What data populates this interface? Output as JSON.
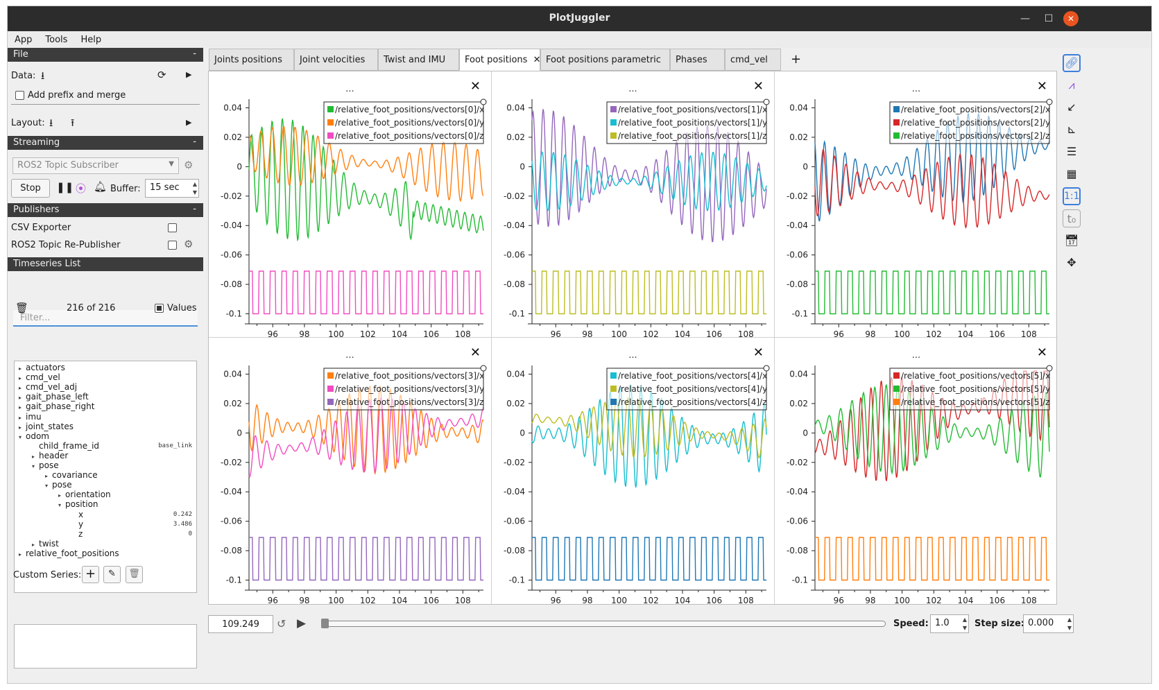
{
  "window": {
    "title": "PlotJuggler"
  },
  "menu": [
    "App",
    "Tools",
    "Help"
  ],
  "file": {
    "header": "File",
    "data_label": "Data:",
    "add_prefix": "Add prefix and merge",
    "layout_label": "Layout:"
  },
  "streaming": {
    "header": "Streaming",
    "source": "ROS2 Topic Subscriber",
    "stop": "Stop",
    "buffer_label": "Buffer:",
    "buffer_value": "15 sec"
  },
  "publishers": {
    "header": "Publishers",
    "items": [
      {
        "label": "CSV Exporter"
      },
      {
        "label": "ROS2 Topic Re-Publisher"
      }
    ]
  },
  "timeseries": {
    "header": "Timeseries List",
    "filter_placeholder": "Filter...",
    "count": "216 of 216",
    "values_label": "Values",
    "tree": [
      {
        "label": "actuators",
        "toggle": "▸",
        "value": ""
      },
      {
        "label": "cmd_vel",
        "toggle": "▸",
        "value": ""
      },
      {
        "label": "cmd_vel_adj",
        "toggle": "▸",
        "value": ""
      },
      {
        "label": "gait_phase_left",
        "toggle": "▸",
        "value": ""
      },
      {
        "label": "gait_phase_right",
        "toggle": "▸",
        "value": ""
      },
      {
        "label": "imu",
        "toggle": "▸",
        "value": ""
      },
      {
        "label": "joint_states",
        "toggle": "▸",
        "value": ""
      },
      {
        "label": "odom",
        "toggle": "▾",
        "value": ""
      },
      {
        "label": "child_frame_id",
        "toggle": "",
        "value": "base_link"
      },
      {
        "label": "header",
        "toggle": "▸",
        "value": ""
      },
      {
        "label": "pose",
        "toggle": "▾",
        "value": ""
      },
      {
        "label": "covariance",
        "toggle": "▸",
        "value": ""
      },
      {
        "label": "pose",
        "toggle": "▾",
        "value": ""
      },
      {
        "label": "orientation",
        "toggle": "▸",
        "value": ""
      },
      {
        "label": "position",
        "toggle": "▾",
        "value": ""
      },
      {
        "label": "x",
        "toggle": "",
        "value": "0.242"
      },
      {
        "label": "y",
        "toggle": "",
        "value": "3.486"
      },
      {
        "label": "z",
        "toggle": "",
        "value": "0"
      },
      {
        "label": "twist",
        "toggle": "▸",
        "value": ""
      },
      {
        "label": "relative_foot_positions",
        "toggle": "▸",
        "value": ""
      }
    ]
  },
  "custom": {
    "label": "Custom Series:"
  },
  "tabs": [
    {
      "label": "Joints positions"
    },
    {
      "label": "Joint velocities"
    },
    {
      "label": "Twist and IMU"
    },
    {
      "label": "Foot positions",
      "close": "✕"
    },
    {
      "label": "Foot positions parametric"
    },
    {
      "label": "Phases"
    },
    {
      "label": "cmd_vel"
    }
  ],
  "add_tab": "+",
  "plot_menu": "...",
  "plot_close": "✕",
  "bottom": {
    "time": "109.249",
    "speed_label": "Speed:",
    "speed_value": "1.0",
    "step_label": "Step size:",
    "step_value": "0.000"
  },
  "right_toolbar": [
    "link-icon",
    "ratio-icon",
    "arrow-icon",
    "histogram-icon",
    "list-icon",
    "grid-icon",
    "one-to-one-icon",
    "t0-icon",
    "calendar-clock-icon",
    "move-icon"
  ],
  "chart_data": [
    {
      "type": "line",
      "xlim": [
        94.5,
        109.3
      ],
      "ylim": [
        -0.104,
        0.044
      ],
      "x_ticks": [
        96,
        98,
        100,
        102,
        104,
        106,
        108
      ],
      "y_ticks": [
        0.04,
        0.02,
        0,
        -0.02,
        -0.04,
        -0.06,
        -0.08,
        -0.1
      ],
      "y_tick_labels": [
        "0.04",
        "0.02",
        "0",
        "-0.02",
        "-0.04",
        "-0.06",
        "-0.08",
        "-0.1"
      ],
      "series": [
        {
          "name": "/relative_foot_positions/vectors[0]/x",
          "color": "#22bb33",
          "kind": "osc_then_drift",
          "amp": 0.041,
          "center": -0.002,
          "end": -0.04
        },
        {
          "name": "/relative_foot_positions/vectors[0]/y",
          "color": "#ff7f0e",
          "kind": "osc",
          "amp": 0.02,
          "center": 0.01,
          "end": -0.005
        },
        {
          "name": "/relative_foot_positions/vectors[0]/z",
          "color": "#f14cc1",
          "kind": "square"
        }
      ]
    },
    {
      "type": "line",
      "xlim": [
        94.5,
        109.3
      ],
      "ylim": [
        -0.104,
        0.044
      ],
      "x_ticks": [
        96,
        98,
        100,
        102,
        104,
        106,
        108
      ],
      "y_ticks": [
        0.04,
        0.02,
        0,
        -0.02,
        -0.04,
        -0.06,
        -0.08,
        -0.1
      ],
      "y_tick_labels": [
        "0.04",
        "0.02",
        "0",
        "-0.02",
        "-0.04",
        "-0.06",
        "-0.08",
        "-0.1"
      ],
      "series": [
        {
          "name": "/relative_foot_positions/vectors[1]/x",
          "color": "#9467bd",
          "kind": "osc",
          "amp": 0.04,
          "center": 0.0,
          "end": -0.015
        },
        {
          "name": "/relative_foot_positions/vectors[1]/y",
          "color": "#17becf",
          "kind": "osc",
          "amp": 0.02,
          "center": -0.01,
          "end": -0.01
        },
        {
          "name": "/relative_foot_positions/vectors[1]/z",
          "color": "#bcbd22",
          "kind": "square"
        }
      ]
    },
    {
      "type": "line",
      "xlim": [
        94.5,
        109.3
      ],
      "ylim": [
        -0.104,
        0.044
      ],
      "x_ticks": [
        96,
        98,
        100,
        102,
        104,
        106,
        108
      ],
      "y_ticks": [
        0.04,
        0.02,
        0,
        -0.02,
        -0.04,
        -0.06,
        -0.08,
        -0.1
      ],
      "y_tick_labels": [
        "0.04",
        "0.02",
        "0",
        "-0.02",
        "-0.04",
        "-0.06",
        "-0.08",
        "-0.1"
      ],
      "series": [
        {
          "name": "/relative_foot_positions/vectors[2]/x",
          "color": "#1f77b4",
          "kind": "osc",
          "amp": 0.03,
          "center": -0.01,
          "end": 0.015
        },
        {
          "name": "/relative_foot_positions/vectors[2]/y",
          "color": "#d62728",
          "kind": "osc",
          "amp": 0.025,
          "center": -0.01,
          "end": -0.02
        },
        {
          "name": "/relative_foot_positions/vectors[2]/z",
          "color": "#22bb33",
          "kind": "square"
        }
      ]
    },
    {
      "type": "line",
      "xlim": [
        94.5,
        109.3
      ],
      "ylim": [
        -0.104,
        0.044
      ],
      "x_ticks": [
        96,
        98,
        100,
        102,
        104,
        106,
        108
      ],
      "y_ticks": [
        0.04,
        0.02,
        0,
        -0.02,
        -0.04,
        -0.06,
        -0.08,
        -0.1
      ],
      "y_tick_labels": [
        "0.04",
        "0.02",
        "0",
        "-0.02",
        "-0.04",
        "-0.06",
        "-0.08",
        "-0.1"
      ],
      "series": [
        {
          "name": "/relative_foot_positions/vectors[3]/x",
          "color": "#ff7f0e",
          "kind": "osc",
          "amp": 0.03,
          "center": 0.005,
          "end": 0.0
        },
        {
          "name": "/relative_foot_positions/vectors[3]/y",
          "color": "#f14cc1",
          "kind": "osc",
          "amp": 0.025,
          "center": -0.015,
          "end": 0.01
        },
        {
          "name": "/relative_foot_positions/vectors[3]/z",
          "color": "#9467bd",
          "kind": "square"
        }
      ]
    },
    {
      "type": "line",
      "xlim": [
        94.5,
        109.3
      ],
      "ylim": [
        -0.104,
        0.044
      ],
      "x_ticks": [
        96,
        98,
        100,
        102,
        104,
        106,
        108
      ],
      "y_ticks": [
        0.04,
        0.02,
        0,
        -0.02,
        -0.04,
        -0.06,
        -0.08,
        -0.1
      ],
      "y_tick_labels": [
        "0.04",
        "0.02",
        "0",
        "-0.02",
        "-0.04",
        "-0.06",
        "-0.08",
        "-0.1"
      ],
      "series": [
        {
          "name": "/relative_foot_positions/vectors[4]/x",
          "color": "#17becf",
          "kind": "osc",
          "amp": 0.035,
          "center": 0.0,
          "end": -0.005
        },
        {
          "name": "/relative_foot_positions/vectors[4]/y",
          "color": "#bcbd22",
          "kind": "osc",
          "amp": 0.02,
          "center": 0.01,
          "end": -0.005
        },
        {
          "name": "/relative_foot_positions/vectors[4]/z",
          "color": "#1f77b4",
          "kind": "square"
        }
      ]
    },
    {
      "type": "line",
      "xlim": [
        94.5,
        109.3
      ],
      "ylim": [
        -0.104,
        0.044
      ],
      "x_ticks": [
        96,
        98,
        100,
        102,
        104,
        106,
        108
      ],
      "y_ticks": [
        0.04,
        0.02,
        0,
        -0.02,
        -0.04,
        -0.06,
        -0.08,
        -0.1
      ],
      "y_tick_labels": [
        "0.04",
        "0.02",
        "0",
        "-0.02",
        "-0.04",
        "-0.06",
        "-0.08",
        "-0.1"
      ],
      "series": [
        {
          "name": "/relative_foot_positions/vectors[5]/x",
          "color": "#d62728",
          "kind": "osc",
          "amp": 0.035,
          "center": -0.01,
          "end": 0.03
        },
        {
          "name": "/relative_foot_positions/vectors[5]/y",
          "color": "#22bb33",
          "kind": "osc",
          "amp": 0.03,
          "center": 0.005,
          "end": -0.002
        },
        {
          "name": "/relative_foot_positions/vectors[5]/z",
          "color": "#ff7f0e",
          "kind": "square"
        }
      ]
    }
  ]
}
